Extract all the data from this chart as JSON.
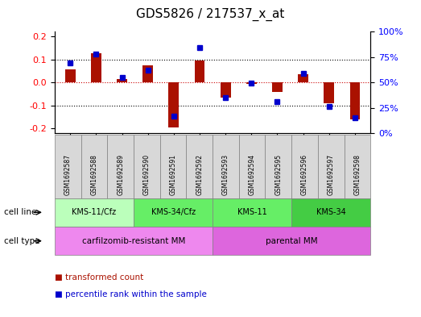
{
  "title": "GDS5826 / 217537_x_at",
  "samples": [
    "GSM1692587",
    "GSM1692588",
    "GSM1692589",
    "GSM1692590",
    "GSM1692591",
    "GSM1692592",
    "GSM1692593",
    "GSM1692594",
    "GSM1692595",
    "GSM1692596",
    "GSM1692597",
    "GSM1692598"
  ],
  "transformed_count": [
    0.055,
    0.125,
    0.013,
    0.075,
    -0.195,
    0.095,
    -0.065,
    -0.008,
    -0.04,
    0.035,
    -0.09,
    -0.16
  ],
  "percentile_rank": [
    0.69,
    0.78,
    0.55,
    0.62,
    0.17,
    0.84,
    0.35,
    0.49,
    0.31,
    0.59,
    0.26,
    0.15
  ],
  "ylim_left": [
    -0.22,
    0.22
  ],
  "ylim_right": [
    0,
    1.0
  ],
  "yticks_left": [
    -0.2,
    -0.1,
    0.0,
    0.1,
    0.2
  ],
  "yticks_right": [
    0.0,
    0.25,
    0.5,
    0.75,
    1.0
  ],
  "ytick_labels_right": [
    "0%",
    "25%",
    "50%",
    "75%",
    "100%"
  ],
  "bar_color": "#aa1100",
  "dot_color": "#0000cc",
  "cell_line_groups": [
    {
      "label": "KMS-11/Cfz",
      "start": 0,
      "end": 3,
      "color": "#bbffbb"
    },
    {
      "label": "KMS-34/Cfz",
      "start": 3,
      "end": 6,
      "color": "#66ee66"
    },
    {
      "label": "KMS-11",
      "start": 6,
      "end": 9,
      "color": "#66ee66"
    },
    {
      "label": "KMS-34",
      "start": 9,
      "end": 12,
      "color": "#44cc44"
    }
  ],
  "cell_type_groups": [
    {
      "label": "carfilzomib-resistant MM",
      "start": 0,
      "end": 6,
      "color": "#ee88ee"
    },
    {
      "label": "parental MM",
      "start": 6,
      "end": 12,
      "color": "#dd66dd"
    }
  ],
  "cell_line_row_label": "cell line",
  "cell_type_row_label": "cell type",
  "legend_items": [
    {
      "color": "#aa1100",
      "label": "transformed count"
    },
    {
      "color": "#0000cc",
      "label": "percentile rank within the sample"
    }
  ],
  "grid_color": "#000000",
  "zero_line_color": "#cc0000",
  "background_color": "#ffffff",
  "plot_bg": "#ffffff",
  "bar_width": 0.4,
  "dot_size": 5
}
